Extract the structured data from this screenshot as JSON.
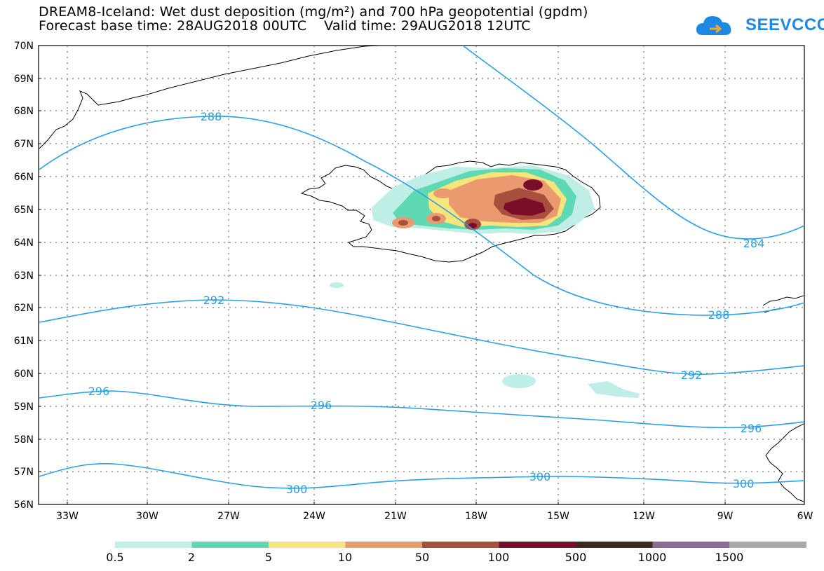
{
  "header": {
    "title_line1": "DREAM8-Iceland: Wet dust deposition (mg/m²) and 700 hPa geopotential (gpdm)",
    "title_line2": "Forecast base time: 28AUG2018 00UTC    Valid time: 29AUG2018 12UTC"
  },
  "logo": {
    "text": "SEEVCCC",
    "icon": "cloud-arrow-icon",
    "color": "#1e88e5"
  },
  "map": {
    "lon_range": [
      -34.25,
      -6
    ],
    "lat_range": [
      56,
      70
    ],
    "lat_labels": [
      "70N",
      "69N",
      "68N",
      "67N",
      "66N",
      "65N",
      "64N",
      "63N",
      "62N",
      "61N",
      "60N",
      "59N",
      "58N",
      "57N",
      "56N"
    ],
    "lon_labels": [
      "33W",
      "30W",
      "27W",
      "24W",
      "21W",
      "18W",
      "15W",
      "12W",
      "9W",
      "6W"
    ],
    "contour_color": "#2aa0e6",
    "contour_labels": [
      "288",
      "284",
      "292",
      "288",
      "296",
      "296",
      "292",
      "296",
      "300",
      "300",
      "300"
    ]
  },
  "legend": {
    "colors": [
      "#bfeee6",
      "#5fd9b4",
      "#f6e57a",
      "#eb9a70",
      "#a8503d",
      "#7a0e2a",
      "#3b2a1d",
      "#8e6a99",
      "#aaaaaa"
    ],
    "labels": [
      "0.5",
      "2",
      "5",
      "10",
      "50",
      "100",
      "500",
      "1000",
      "1500"
    ]
  }
}
